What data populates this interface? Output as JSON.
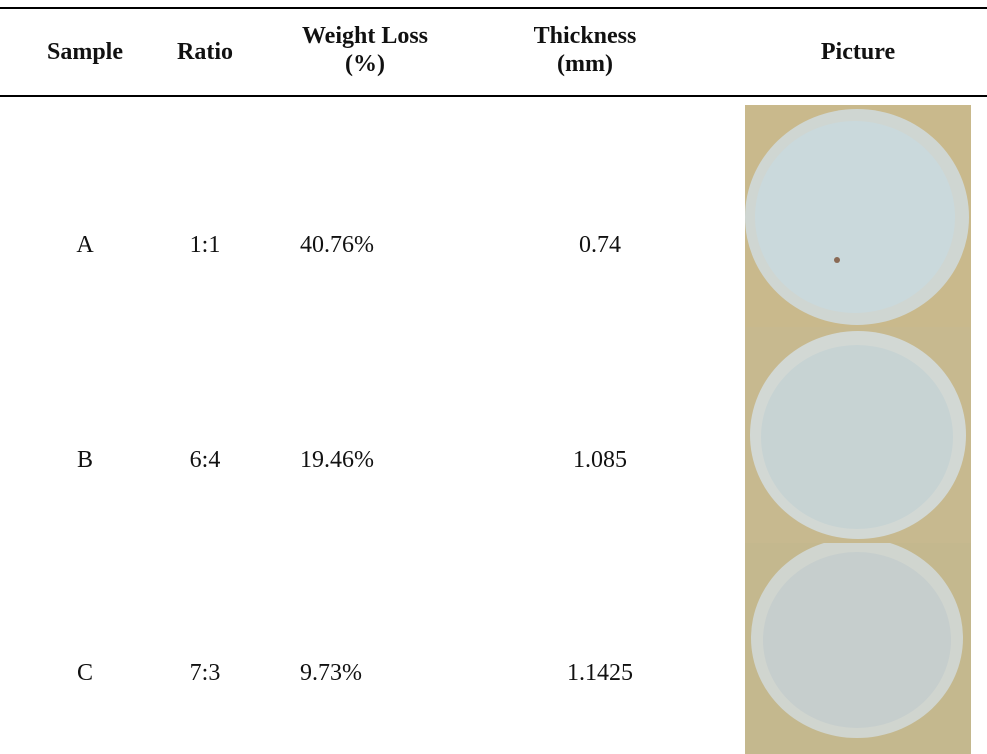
{
  "table": {
    "header": [
      "Sample",
      "Ratio",
      "Weight Loss (%)",
      "Thickness (mm)",
      "Picture"
    ],
    "rows": [
      [
        "A",
        "1:1",
        "40.76%",
        "0.74"
      ],
      [
        "B",
        "6:4",
        "19.46%",
        "1.085"
      ],
      [
        "C",
        "7:3",
        "9.73%",
        "1.1425"
      ]
    ]
  }
}
